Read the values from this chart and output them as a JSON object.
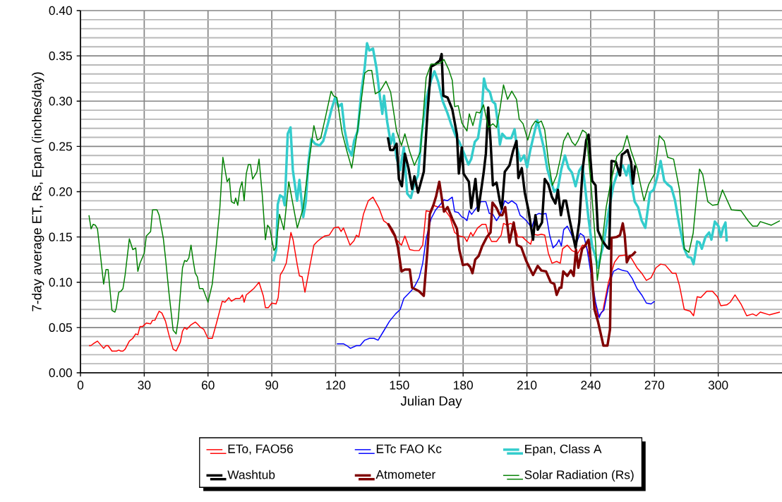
{
  "chart_data": {
    "type": "line",
    "xlabel": "Julian Day",
    "ylabel": "7-day average  ET, Rs, Epan  (inches/day)",
    "xlim": [
      0,
      330
    ],
    "ylim": [
      0,
      0.4
    ],
    "xticks": [
      0,
      30,
      60,
      90,
      120,
      150,
      180,
      210,
      240,
      270,
      300
    ],
    "yticks": [
      {
        "value": 0,
        "label": "0.00"
      },
      {
        "value": 0.05,
        "label": "0.05"
      },
      {
        "value": 0.1,
        "label": "0.10"
      },
      {
        "value": 0.15,
        "label": "0.15"
      },
      {
        "value": 0.2,
        "label": "0.20"
      },
      {
        "value": 0.25,
        "label": "0.25"
      },
      {
        "value": 0.3,
        "label": "0.30"
      },
      {
        "value": 0.35,
        "label": "0.35"
      },
      {
        "value": 0.4,
        "label": "0.40"
      }
    ],
    "grid": true,
    "legend": "bottom",
    "series": [
      {
        "name": "ETo, FAO56",
        "color": "#ff0000",
        "x": [
          4,
          4.9,
          6,
          8,
          10.9,
          12,
          13,
          14.8,
          17,
          18,
          19,
          20,
          21,
          23,
          24.6,
          26,
          27,
          28,
          29.2,
          31,
          33,
          33.9,
          35,
          37,
          38.3,
          40,
          41.6,
          43.6,
          45,
          47,
          48,
          49,
          50,
          52,
          54,
          55,
          56.5,
          58,
          60,
          62,
          64,
          66.7,
          68,
          69.8,
          71,
          73,
          75,
          76.2,
          77,
          78,
          80,
          81.5,
          82.6,
          84,
          86,
          87,
          88.4,
          90,
          92,
          93,
          94,
          95.5,
          96.8,
          99,
          100,
          102,
          103,
          104.3,
          105.6,
          107.5,
          109.8,
          111.4,
          113,
          114.8,
          117,
          119.2,
          121.4,
          122.6,
          123.7,
          126.8,
          128.7,
          129.8,
          130.9,
          133.1,
          135.4,
          137.6,
          140.4,
          142.6,
          144.3,
          146.5,
          148.7,
          151,
          152.6,
          154.9,
          157.1,
          159.3,
          161,
          162.6,
          164.3,
          166,
          168.2,
          170.5,
          173.8,
          176,
          178.2,
          180.5,
          181.8,
          183.6,
          184.6,
          186.8,
          189,
          190.7,
          192.3,
          193.4,
          195.7,
          197.9,
          199,
          200.7,
          202.3,
          204,
          205.7,
          207.9,
          210.1,
          211.8,
          212.9,
          215.1,
          216.8,
          218.4,
          220.1,
          221.8,
          224,
          225.7,
          226.8,
          229,
          231.2,
          234,
          236.2,
          237.9,
          239.6,
          241.2,
          243.4,
          245.7,
          248.4,
          251.2,
          253.4,
          256.2,
          259,
          261.8,
          264,
          266.2,
          268.4,
          270.7,
          272.9,
          275.1,
          278.4,
          280.1,
          281.8,
          284,
          286.8,
          288.4,
          290.1,
          291.8,
          294.6,
          297.3,
          299.6,
          301.2,
          304,
          305.7,
          307.9,
          310.7,
          313.4,
          316.2,
          317.9,
          319.8,
          324,
          329
        ],
        "values": [
          0.03,
          0.03,
          0.032,
          0.035,
          0.027,
          0.03,
          0.03,
          0.024,
          0.024,
          0.025,
          0.024,
          0.024,
          0.026,
          0.035,
          0.038,
          0.043,
          0.042,
          0.051,
          0.051,
          0.055,
          0.054,
          0.058,
          0.058,
          0.068,
          0.066,
          0.057,
          0.042,
          0.026,
          0.024,
          0.034,
          0.046,
          0.05,
          0.048,
          0.053,
          0.056,
          0.054,
          0.05,
          0.048,
          0.038,
          0.038,
          0.055,
          0.079,
          0.078,
          0.083,
          0.079,
          0.082,
          0.082,
          0.086,
          0.078,
          0.086,
          0.09,
          0.093,
          0.096,
          0.1,
          0.085,
          0.072,
          0.072,
          0.077,
          0.076,
          0.083,
          0.108,
          0.114,
          0.121,
          0.155,
          0.147,
          0.119,
          0.107,
          0.106,
          0.089,
          0.113,
          0.141,
          0.145,
          0.148,
          0.151,
          0.152,
          0.16,
          0.161,
          0.156,
          0.16,
          0.141,
          0.146,
          0.152,
          0.15,
          0.175,
          0.19,
          0.194,
          0.182,
          0.168,
          0.165,
          0.155,
          0.147,
          0.141,
          0.151,
          0.136,
          0.135,
          0.135,
          0.141,
          0.179,
          0.178,
          0.185,
          0.183,
          0.183,
          0.172,
          0.155,
          0.151,
          0.15,
          0.145,
          0.155,
          0.151,
          0.16,
          0.164,
          0.164,
          0.15,
          0.145,
          0.145,
          0.152,
          0.165,
          0.163,
          0.165,
          0.163,
          0.15,
          0.15,
          0.145,
          0.142,
          0.153,
          0.152,
          0.153,
          0.152,
          0.132,
          0.121,
          0.123,
          0.121,
          0.137,
          0.141,
          0.135,
          0.132,
          0.141,
          0.14,
          0.127,
          0.089,
          0.062,
          0.068,
          0.1,
          0.122,
          0.129,
          0.13,
          0.127,
          0.116,
          0.11,
          0.102,
          0.105,
          0.116,
          0.12,
          0.119,
          0.11,
          0.11,
          0.096,
          0.07,
          0.068,
          0.063,
          0.084,
          0.083,
          0.09,
          0.09,
          0.084,
          0.074,
          0.075,
          0.078,
          0.086,
          0.076,
          0.063,
          0.065,
          0.063,
          0.067,
          0.064,
          0.067
        ]
      },
      {
        "name": "ETc FAO Kc",
        "color": "#0000ff",
        "x": [
          120.6,
          122.3,
          123.7,
          125.3,
          127,
          129.8,
          131.5,
          133.7,
          135.9,
          138.1,
          140,
          142.6,
          145.4,
          148.2,
          150.4,
          152.1,
          153.7,
          155.4,
          157.1,
          159.3,
          161,
          162.6,
          164.9,
          167.1,
          169.3,
          171,
          172.6,
          174.9,
          176,
          177.7,
          179.4,
          180.5,
          181.8,
          182.9,
          184,
          186.2,
          188.4,
          190.7,
          192.3,
          194,
          195.7,
          197.3,
          199.6,
          201.2,
          202.9,
          205.1,
          206.8,
          208.4,
          210.1,
          212.3,
          214,
          215.6,
          217.3,
          219,
          220.7,
          222.3,
          224,
          225.1,
          226.2,
          227.3,
          229,
          230.7,
          232.9,
          235.1,
          236.8,
          238.4,
          240.1,
          242.3,
          244,
          245.1,
          246.2,
          248.4,
          250.7,
          252.9,
          255.1,
          257.3,
          259.6,
          261.8,
          264,
          266.2,
          268.4,
          270.1
        ],
        "values": [
          0.032,
          0.032,
          0.032,
          0.03,
          0.027,
          0.03,
          0.03,
          0.036,
          0.038,
          0.038,
          0.036,
          0.046,
          0.057,
          0.065,
          0.07,
          0.082,
          0.086,
          0.09,
          0.095,
          0.105,
          0.121,
          0.148,
          0.17,
          0.18,
          0.186,
          0.191,
          0.19,
          0.194,
          0.178,
          0.177,
          0.172,
          0.171,
          0.168,
          0.179,
          0.175,
          0.182,
          0.189,
          0.189,
          0.176,
          0.175,
          0.168,
          0.174,
          0.19,
          0.187,
          0.19,
          0.186,
          0.174,
          0.171,
          0.167,
          0.16,
          0.174,
          0.176,
          0.175,
          0.176,
          0.152,
          0.138,
          0.142,
          0.147,
          0.14,
          0.158,
          0.162,
          0.154,
          0.141,
          0.154,
          0.151,
          0.135,
          0.11,
          0.078,
          0.061,
          0.067,
          0.069,
          0.095,
          0.112,
          0.115,
          0.113,
          0.112,
          0.104,
          0.093,
          0.086,
          0.077,
          0.076,
          0.079
        ]
      },
      {
        "name": "Epan, Class A",
        "color": "#33cccc",
        "x": [
          90.8,
          92.1,
          92.8,
          93.9,
          95.2,
          96.1,
          97.5,
          98.8,
          99.9,
          101.9,
          103,
          104.8,
          106,
          107.2,
          108.6,
          110.3,
          112.5,
          114.2,
          116.4,
          118.1,
          119.8,
          121.4,
          122.9,
          124.2,
          125.9,
          127.6,
          128.7,
          130.4,
          132.1,
          133.7,
          134.8,
          135.9,
          137.6,
          139.2,
          140.9,
          142,
          142.8,
          144.3,
          146,
          147.1,
          148.7,
          150.4,
          152.1,
          153.7,
          155.4,
          157.1,
          158.8,
          160.4,
          162.6,
          164.9,
          166.5,
          168.2,
          170.4,
          172.6,
          174.3,
          176.6,
          178.2,
          180.5,
          182.5,
          183.8,
          185.5,
          187,
          188.7,
          189.8,
          190.9,
          192.6,
          193.7,
          195.1,
          196.4,
          197.3,
          198.4,
          200.3,
          202.6,
          204.2,
          205.3,
          207,
          208.7,
          210.1,
          211.6,
          213.4,
          214.9,
          216.2,
          217.9,
          219.6,
          221.2,
          222.9,
          224.6,
          226.2,
          227.9,
          229.6,
          231.2,
          232.9,
          234.6,
          236.2,
          237.3,
          239,
          240.7,
          242.3,
          243.4,
          244.6,
          246.2,
          248.4,
          250.7,
          252.9,
          255.1,
          256.8,
          257.9,
          259.6,
          260.7,
          262.3,
          264,
          265.7,
          267.9,
          269.6,
          271.2,
          272.9,
          274.6,
          276.2,
          277.9,
          279.6,
          281.8,
          284,
          285.7,
          287.3,
          288.4,
          290.1,
          291.2,
          292.3,
          294,
          295.7,
          296.8,
          298.4,
          300.1,
          301.2,
          302.3,
          303.4,
          304
        ],
        "values": [
          0.123,
          0.136,
          0.186,
          0.196,
          0.194,
          0.185,
          0.264,
          0.271,
          0.224,
          0.19,
          0.213,
          0.172,
          0.189,
          0.232,
          0.258,
          0.253,
          0.251,
          0.256,
          0.275,
          0.291,
          0.304,
          0.294,
          0.297,
          0.269,
          0.248,
          0.24,
          0.256,
          0.267,
          0.31,
          0.337,
          0.364,
          0.356,
          0.358,
          0.337,
          0.304,
          0.286,
          0.306,
          0.277,
          0.253,
          0.264,
          0.237,
          0.224,
          0.249,
          0.198,
          0.193,
          0.209,
          0.218,
          0.261,
          0.302,
          0.323,
          0.333,
          0.322,
          0.3,
          0.287,
          0.275,
          0.261,
          0.255,
          0.242,
          0.23,
          0.236,
          0.255,
          0.259,
          0.286,
          0.325,
          0.314,
          0.31,
          0.3,
          0.297,
          0.275,
          0.252,
          0.264,
          0.259,
          0.259,
          0.269,
          0.249,
          0.234,
          0.24,
          0.227,
          0.246,
          0.264,
          0.279,
          0.266,
          0.249,
          0.225,
          0.212,
          0.2,
          0.204,
          0.225,
          0.24,
          0.226,
          0.221,
          0.206,
          0.223,
          0.229,
          0.207,
          0.17,
          0.14,
          0.128,
          0.116,
          0.129,
          0.143,
          0.178,
          0.207,
          0.223,
          0.229,
          0.218,
          0.229,
          0.204,
          0.189,
          0.183,
          0.168,
          0.16,
          0.199,
          0.202,
          0.215,
          0.234,
          0.212,
          0.208,
          0.205,
          0.191,
          0.162,
          0.137,
          0.128,
          0.127,
          0.12,
          0.145,
          0.144,
          0.137,
          0.15,
          0.155,
          0.147,
          0.167,
          0.162,
          0.15,
          0.16,
          0.166,
          0.145
        ]
      },
      {
        "name": "Washtub",
        "color": "#000000",
        "x": [
          144.6,
          145.7,
          147.1,
          148.7,
          149.8,
          151.2,
          152.6,
          154.3,
          156,
          157.1,
          158.8,
          161.5,
          163.2,
          164.9,
          167.1,
          169.1,
          169.9,
          170.7,
          172.7,
          174.9,
          177.1,
          178,
          179.4,
          180.2,
          182.7,
          183.8,
          185.8,
          187.1,
          189.6,
          190.7,
          191.8,
          192.9,
          194,
          195.7,
          197.3,
          198.2,
          199.6,
          201.8,
          203.5,
          205.1,
          206,
          207.6,
          209,
          210.7,
          212.9,
          214,
          215.1,
          217.1,
          218.4,
          220.1,
          221.8,
          223.4,
          224.6,
          226,
          227.3,
          228.4,
          230.1,
          232.9,
          234.6,
          236.2,
          237.9,
          239,
          240.7,
          242.3,
          243.4,
          245.7,
          247.9,
          248.7,
          249.8,
          251.8,
          253.8,
          254.7,
          256,
          257.3,
          259,
          259.9,
          260.9
        ],
        "values": [
          0.26,
          0.246,
          0.246,
          0.253,
          0.214,
          0.206,
          0.242,
          0.226,
          0.203,
          0.217,
          0.199,
          0.222,
          0.286,
          0.338,
          0.341,
          0.345,
          0.352,
          0.306,
          0.304,
          0.291,
          0.263,
          0.22,
          0.249,
          0.22,
          0.211,
          0.182,
          0.214,
          0.179,
          0.22,
          0.242,
          0.293,
          0.256,
          0.207,
          0.21,
          0.189,
          0.181,
          0.222,
          0.229,
          0.245,
          0.256,
          0.215,
          0.226,
          0.199,
          0.18,
          0.147,
          0.174,
          0.158,
          0.166,
          0.214,
          0.208,
          0.194,
          0.187,
          0.202,
          0.174,
          0.19,
          0.19,
          0.169,
          0.138,
          0.166,
          0.224,
          0.257,
          0.263,
          0.212,
          0.207,
          0.157,
          0.145,
          0.138,
          0.137,
          0.234,
          0.233,
          0.218,
          0.241,
          0.243,
          0.246,
          0.233,
          0.209,
          0.229
        ]
      },
      {
        "name": "Atmometer",
        "color": "#800000",
        "x": [
          144.6,
          146.5,
          148,
          149.3,
          151,
          152.6,
          154.9,
          156,
          157.7,
          159.3,
          161.5,
          163.2,
          164.3,
          166,
          167.3,
          168.8,
          169.9,
          171,
          172.7,
          174.9,
          177.1,
          178.2,
          179.9,
          182.1,
          183.3,
          184.4,
          185.7,
          187.3,
          189,
          191.2,
          192.9,
          193.8,
          195.7,
          197.3,
          198.4,
          199.8,
          201.8,
          203.8,
          205.3,
          207.3,
          209.6,
          211.2,
          212.9,
          215.1,
          216.8,
          219,
          221.2,
          222.9,
          224,
          225.4,
          226.2,
          227.1,
          229,
          230.7,
          232,
          233.1,
          234.2,
          236,
          237.3,
          239,
          240.4,
          241.8,
          243.4,
          246,
          247.9,
          249.1,
          249.8,
          252.3,
          253.8,
          255.1,
          256,
          257,
          258.4,
          259.6,
          261.2
        ],
        "values": [
          0.165,
          0.158,
          0.151,
          0.139,
          0.112,
          0.114,
          0.114,
          0.094,
          0.092,
          0.09,
          0.085,
          0.135,
          0.175,
          0.185,
          0.195,
          0.211,
          0.194,
          0.178,
          0.183,
          0.17,
          0.159,
          0.136,
          0.119,
          0.12,
          0.117,
          0.11,
          0.125,
          0.129,
          0.14,
          0.15,
          0.155,
          0.188,
          0.182,
          0.174,
          0.174,
          0.183,
          0.144,
          0.166,
          0.141,
          0.139,
          0.124,
          0.116,
          0.108,
          0.118,
          0.113,
          0.112,
          0.1,
          0.098,
          0.086,
          0.094,
          0.094,
          0.112,
          0.107,
          0.113,
          0.107,
          0.136,
          0.116,
          0.137,
          0.14,
          0.147,
          0.116,
          0.07,
          0.057,
          0.03,
          0.03,
          0.048,
          0.149,
          0.15,
          0.152,
          0.165,
          0.152,
          0.122,
          0.129,
          0.13,
          0.134
        ]
      },
      {
        "name": "Solar Radiation (Rs)",
        "color": "#008000",
        "x": [
          4,
          5,
          6,
          7,
          8,
          9.3,
          10.9,
          12,
          13,
          14.8,
          16.2,
          16.8,
          18,
          19,
          20,
          21,
          23,
          24.6,
          26,
          27,
          28,
          30,
          31,
          33,
          33.9,
          36,
          37,
          39,
          40,
          41.6,
          43.6,
          45,
          46,
          48,
          49,
          50,
          51,
          52,
          53,
          54,
          55,
          56,
          57.6,
          60,
          62,
          64,
          65.6,
          67,
          69,
          70,
          71,
          72.4,
          73,
          74,
          75,
          76,
          77,
          78,
          79,
          80,
          81,
          83,
          84,
          85.5,
          87,
          88,
          89,
          91,
          92,
          93.6,
          95.7,
          98,
          102,
          104.7,
          107.5,
          109.8,
          111.4,
          113,
          115.3,
          117.9,
          119,
          120.6,
          123.1,
          125.3,
          127.6,
          130.4,
          133.7,
          135.4,
          137,
          138.7,
          140.9,
          143.7,
          145.9,
          148.7,
          151,
          152.6,
          154.9,
          157.1,
          159.9,
          162.6,
          164.9,
          167.1,
          169.3,
          171,
          173.2,
          174.9,
          176,
          177.7,
          179.4,
          181.8,
          182.9,
          184.6,
          186.2,
          187.9,
          189.6,
          191.8,
          194,
          195.7,
          197.3,
          199,
          200.9,
          202.9,
          205.1,
          206.4,
          208.2,
          210.4,
          212.3,
          214,
          215.3,
          216.8,
          218.4,
          220.1,
          222,
          224,
          225.7,
          227.3,
          229.3,
          231.2,
          232.7,
          234,
          236.2,
          237.9,
          240.1,
          242.3,
          243.1,
          244.6,
          247.3,
          249.6,
          252.3,
          255.1,
          257.1,
          259,
          261.8,
          265.1,
          267.3,
          270.1,
          272.3,
          274.6,
          276.2,
          279,
          281.8,
          284,
          286.2,
          288.2,
          289.8,
          291.2,
          292.7,
          295.1,
          297.3,
          299.8,
          302,
          306.2,
          310.7,
          314,
          316.2,
          318.4,
          319.8,
          325,
          329
        ],
        "values": [
          0.174,
          0.159,
          0.164,
          0.163,
          0.159,
          0.132,
          0.098,
          0.114,
          0.114,
          0.069,
          0.067,
          0.071,
          0.089,
          0.09,
          0.093,
          0.108,
          0.148,
          0.136,
          0.138,
          0.112,
          0.121,
          0.132,
          0.151,
          0.156,
          0.18,
          0.18,
          0.174,
          0.148,
          0.127,
          0.089,
          0.047,
          0.043,
          0.059,
          0.116,
          0.124,
          0.123,
          0.127,
          0.141,
          0.124,
          0.11,
          0.106,
          0.093,
          0.093,
          0.078,
          0.098,
          0.143,
          0.183,
          0.238,
          0.211,
          0.215,
          0.189,
          0.187,
          0.193,
          0.185,
          0.203,
          0.211,
          0.19,
          0.22,
          0.23,
          0.23,
          0.214,
          0.222,
          0.236,
          0.197,
          0.147,
          0.163,
          0.16,
          0.135,
          0.139,
          0.175,
          0.158,
          0.211,
          0.16,
          0.181,
          0.233,
          0.273,
          0.257,
          0.259,
          0.283,
          0.311,
          0.306,
          0.304,
          0.265,
          0.245,
          0.226,
          0.269,
          0.331,
          0.334,
          0.334,
          0.308,
          0.311,
          0.322,
          0.31,
          0.267,
          0.251,
          0.264,
          0.244,
          0.229,
          0.244,
          0.326,
          0.341,
          0.341,
          0.342,
          0.346,
          0.335,
          0.323,
          0.294,
          0.295,
          0.276,
          0.267,
          0.286,
          0.273,
          0.288,
          0.287,
          0.296,
          0.271,
          0.275,
          0.271,
          0.291,
          0.318,
          0.302,
          0.311,
          0.302,
          0.28,
          0.275,
          0.257,
          0.272,
          0.278,
          0.276,
          0.278,
          0.268,
          0.234,
          0.207,
          0.218,
          0.236,
          0.256,
          0.265,
          0.255,
          0.251,
          0.256,
          0.268,
          0.265,
          0.21,
          0.143,
          0.102,
          0.127,
          0.183,
          0.212,
          0.239,
          0.246,
          0.262,
          0.245,
          0.226,
          0.19,
          0.208,
          0.22,
          0.262,
          0.256,
          0.238,
          0.236,
          0.202,
          0.137,
          0.133,
          0.154,
          0.194,
          0.225,
          0.219,
          0.189,
          0.185,
          0.186,
          0.202,
          0.18,
          0.179,
          0.168,
          0.162,
          0.162,
          0.167,
          0.163,
          0.168
        ]
      }
    ]
  }
}
